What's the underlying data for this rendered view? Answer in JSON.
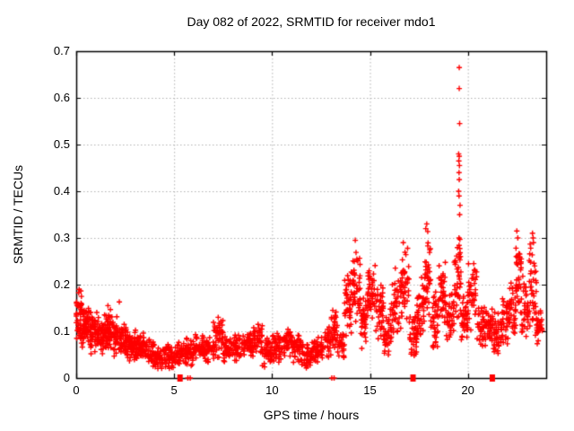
{
  "page": {
    "background": "#ffffff"
  },
  "chart_data": {
    "type": "scatter",
    "title": "Day 082 of 2022, SRMTID for receiver mdo1",
    "xlabel": "GPS time / hours",
    "ylabel": "SRMTID / TECUs",
    "xlim": [
      0,
      24
    ],
    "ylim": [
      0,
      0.7
    ],
    "xticks": {
      "values": [
        0,
        5,
        10,
        15,
        20
      ],
      "labels": [
        "0",
        "5",
        "10",
        "15",
        "20"
      ]
    },
    "yticks": {
      "values": [
        0,
        0.1,
        0.2,
        0.3,
        0.4,
        0.5,
        0.6,
        0.7
      ],
      "labels": [
        "0",
        "0.1",
        "0.2",
        "0.3",
        "0.4",
        "0.5",
        "0.6",
        "0.7"
      ]
    },
    "grid": {
      "visible": true,
      "style": "dotted",
      "color": "#b0b0b0"
    },
    "legend": "none",
    "axis_color": "#000000",
    "marker": {
      "shape": "plus",
      "color": "#ff0000",
      "size": 7
    },
    "series_name": "SRMTID",
    "prng_seed": 20220082,
    "density_bands": [
      [
        0.0,
        0.3,
        45,
        0.07,
        0.19
      ],
      [
        0.3,
        0.7,
        55,
        0.06,
        0.16
      ],
      [
        0.7,
        1.1,
        55,
        0.05,
        0.15
      ],
      [
        1.1,
        1.5,
        50,
        0.05,
        0.14
      ],
      [
        1.5,
        1.9,
        50,
        0.05,
        0.155
      ],
      [
        1.9,
        2.3,
        48,
        0.04,
        0.14
      ],
      [
        2.3,
        2.7,
        48,
        0.04,
        0.12
      ],
      [
        2.7,
        3.1,
        45,
        0.03,
        0.11
      ],
      [
        3.1,
        3.5,
        45,
        0.03,
        0.1
      ],
      [
        3.5,
        4.0,
        48,
        0.02,
        0.085
      ],
      [
        4.0,
        4.5,
        48,
        0.015,
        0.07
      ],
      [
        4.5,
        5.0,
        45,
        0.015,
        0.075
      ],
      [
        5.0,
        5.5,
        42,
        0.02,
        0.08
      ],
      [
        5.5,
        6.0,
        42,
        0.02,
        0.09
      ],
      [
        6.0,
        6.5,
        42,
        0.03,
        0.1
      ],
      [
        6.5,
        7.0,
        42,
        0.03,
        0.1
      ],
      [
        7.0,
        7.5,
        45,
        0.04,
        0.125
      ],
      [
        7.5,
        8.0,
        42,
        0.03,
        0.095
      ],
      [
        8.0,
        8.5,
        42,
        0.03,
        0.1
      ],
      [
        8.5,
        9.0,
        42,
        0.04,
        0.105
      ],
      [
        9.0,
        9.5,
        45,
        0.04,
        0.12
      ],
      [
        9.5,
        10.0,
        42,
        0.02,
        0.09
      ],
      [
        10.0,
        10.5,
        42,
        0.03,
        0.1
      ],
      [
        10.5,
        11.0,
        42,
        0.04,
        0.11
      ],
      [
        11.0,
        11.5,
        40,
        0.03,
        0.095
      ],
      [
        11.5,
        12.0,
        40,
        0.02,
        0.08
      ],
      [
        12.0,
        12.5,
        40,
        0.03,
        0.09
      ],
      [
        12.5,
        13.0,
        40,
        0.04,
        0.11
      ],
      [
        13.0,
        13.35,
        35,
        0.06,
        0.145
      ],
      [
        13.35,
        13.7,
        30,
        0.04,
        0.105
      ],
      [
        13.7,
        14.1,
        42,
        0.08,
        0.25
      ],
      [
        14.1,
        14.5,
        45,
        0.1,
        0.3
      ],
      [
        14.5,
        14.9,
        40,
        0.06,
        0.19
      ],
      [
        14.9,
        15.3,
        42,
        0.1,
        0.26
      ],
      [
        15.3,
        15.7,
        40,
        0.08,
        0.22
      ],
      [
        15.7,
        16.1,
        38,
        0.04,
        0.15
      ],
      [
        16.1,
        16.6,
        40,
        0.08,
        0.25
      ],
      [
        16.6,
        17.0,
        40,
        0.1,
        0.29
      ],
      [
        17.0,
        17.4,
        38,
        0.03,
        0.15
      ],
      [
        17.4,
        17.8,
        38,
        0.06,
        0.22
      ],
      [
        17.8,
        18.1,
        38,
        0.12,
        0.33
      ],
      [
        18.1,
        18.5,
        38,
        0.05,
        0.2
      ],
      [
        18.5,
        18.9,
        40,
        0.1,
        0.27
      ],
      [
        18.9,
        19.3,
        38,
        0.06,
        0.2
      ],
      [
        19.3,
        19.65,
        42,
        0.1,
        0.32
      ],
      [
        19.65,
        20.0,
        36,
        0.07,
        0.18
      ],
      [
        20.0,
        20.45,
        40,
        0.1,
        0.25
      ],
      [
        20.45,
        20.9,
        36,
        0.05,
        0.17
      ],
      [
        20.9,
        21.3,
        36,
        0.06,
        0.18
      ],
      [
        21.3,
        21.7,
        36,
        0.04,
        0.15
      ],
      [
        21.7,
        22.1,
        36,
        0.06,
        0.19
      ],
      [
        22.1,
        22.45,
        36,
        0.08,
        0.22
      ],
      [
        22.45,
        22.75,
        34,
        0.12,
        0.32
      ],
      [
        22.75,
        23.1,
        36,
        0.08,
        0.22
      ],
      [
        23.1,
        23.5,
        38,
        0.07,
        0.3
      ],
      [
        23.5,
        23.8,
        28,
        0.07,
        0.15
      ]
    ],
    "outlier_points": [
      [
        19.56,
        0.665
      ],
      [
        19.56,
        0.62
      ],
      [
        19.58,
        0.545
      ],
      [
        19.53,
        0.48
      ],
      [
        19.56,
        0.475
      ],
      [
        19.54,
        0.465
      ],
      [
        19.57,
        0.455
      ],
      [
        19.55,
        0.44
      ],
      [
        19.56,
        0.425
      ],
      [
        19.53,
        0.4
      ],
      [
        19.55,
        0.39
      ],
      [
        19.6,
        0.37
      ],
      [
        19.58,
        0.35
      ],
      [
        0.15,
        0.19
      ],
      [
        2.2,
        0.163
      ],
      [
        1.62,
        0.155
      ],
      [
        7.25,
        0.13
      ],
      [
        13.1,
        0.145
      ],
      [
        14.25,
        0.295
      ],
      [
        16.7,
        0.29
      ],
      [
        17.9,
        0.33
      ],
      [
        17.85,
        0.32
      ],
      [
        20.3,
        0.245
      ],
      [
        22.5,
        0.315
      ],
      [
        22.55,
        0.3
      ],
      [
        23.3,
        0.31
      ],
      [
        23.33,
        0.3
      ],
      [
        23.35,
        0.29
      ]
    ],
    "zero_points": [
      [
        5.7,
        0
      ],
      [
        5.82,
        0
      ],
      [
        13.05,
        0
      ],
      [
        13.17,
        0
      ]
    ],
    "zero_clusters": [
      [
        5.3,
        0
      ],
      [
        17.2,
        0
      ],
      [
        21.25,
        0
      ]
    ]
  }
}
